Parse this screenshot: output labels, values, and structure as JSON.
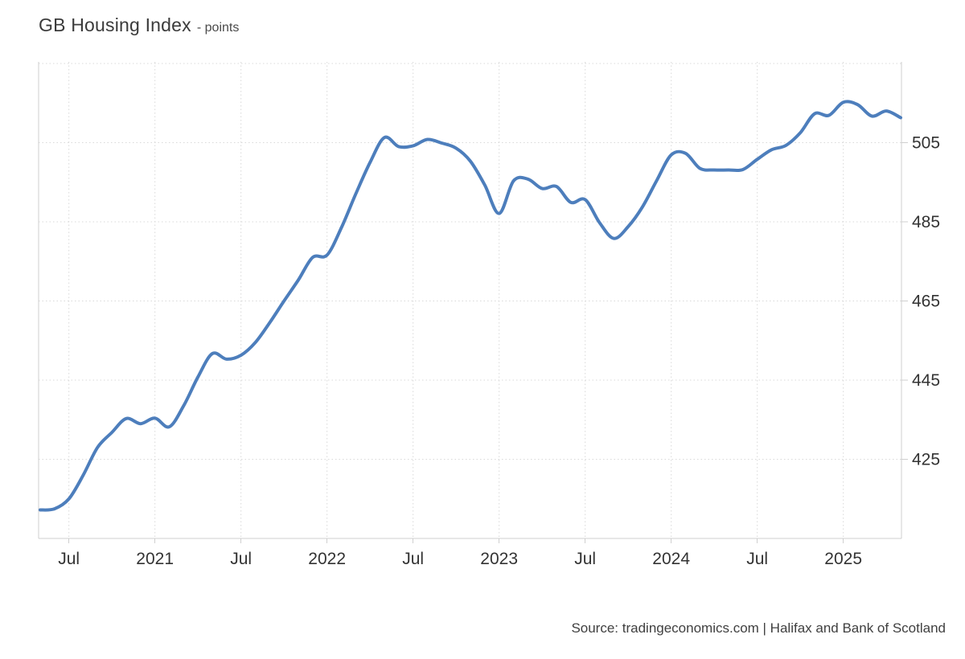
{
  "page": {
    "title": "GB Housing Index",
    "subtitle": "- points",
    "source": "Source: tradingeconomics.com | Halifax and Bank of Scotland"
  },
  "chart_data": {
    "type": "line",
    "title": "GB Housing Index",
    "subtitle": "- points",
    "unit": "points",
    "legend": "none",
    "grid": "dotted",
    "line_color": "#4d7ebc",
    "grid_color": "#d9d9d9",
    "axis_color": "#cfcfcf",
    "tick_text_color": "#333333",
    "ylim": [
      405,
      525.4
    ],
    "y_ticks": [
      425,
      445,
      465,
      485,
      505
    ],
    "y_grid_values": [
      425,
      445,
      465,
      485,
      505,
      525
    ],
    "x_tick_month_index": [
      2,
      8,
      14,
      20,
      26,
      32,
      38,
      44,
      50,
      56
    ],
    "x_tick_labels": [
      "Jul",
      "2021",
      "Jul",
      "2022",
      "Jul",
      "2023",
      "Jul",
      "2024",
      "Jul",
      "2025"
    ],
    "x": [
      "2020-05",
      "2020-06",
      "2020-07",
      "2020-08",
      "2020-09",
      "2020-10",
      "2020-11",
      "2020-12",
      "2021-01",
      "2021-02",
      "2021-03",
      "2021-04",
      "2021-05",
      "2021-06",
      "2021-07",
      "2021-08",
      "2021-09",
      "2021-10",
      "2021-11",
      "2021-12",
      "2022-01",
      "2022-02",
      "2022-03",
      "2022-04",
      "2022-05",
      "2022-06",
      "2022-07",
      "2022-08",
      "2022-09",
      "2022-10",
      "2022-11",
      "2022-12",
      "2023-01",
      "2023-02",
      "2023-03",
      "2023-04",
      "2023-05",
      "2023-06",
      "2023-07",
      "2023-08",
      "2023-09",
      "2023-10",
      "2023-11",
      "2023-12",
      "2024-01",
      "2024-02",
      "2024-03",
      "2024-04",
      "2024-05",
      "2024-06",
      "2024-07",
      "2024-08",
      "2024-09",
      "2024-10",
      "2024-11",
      "2024-12",
      "2025-01",
      "2025-02",
      "2025-03",
      "2025-04",
      "2025-05"
    ],
    "series": [
      {
        "name": "GB Housing Index",
        "values": [
          412.2,
          412.5,
          415.0,
          421.0,
          428.0,
          431.8,
          435.3,
          434.0,
          435.4,
          433.2,
          438.5,
          445.8,
          451.7,
          450.3,
          451.3,
          454.5,
          459.5,
          465.0,
          470.3,
          476.0,
          476.6,
          483.5,
          492.0,
          500.0,
          506.3,
          504.0,
          504.2,
          505.8,
          504.9,
          503.6,
          500.3,
          494.3,
          487.1,
          495.3,
          495.8,
          493.4,
          493.9,
          489.9,
          490.6,
          484.8,
          480.8,
          483.8,
          488.8,
          495.5,
          501.9,
          502.3,
          498.5,
          498.1,
          498.1,
          498.2,
          500.8,
          503.2,
          504.3,
          507.5,
          512.3,
          511.9,
          515.2,
          514.6,
          511.7,
          513.0,
          511.3
        ]
      }
    ],
    "source": "Source: tradingeconomics.com | Halifax and Bank of Scotland"
  }
}
